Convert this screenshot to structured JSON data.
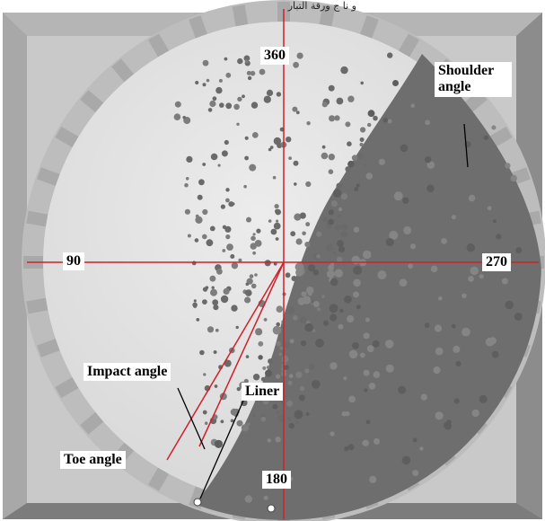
{
  "header_fragment": "و نا ج ورقة التبار",
  "angle_labels": {
    "top": "360",
    "left": "90",
    "right": "270",
    "bottom": "180"
  },
  "annotations": {
    "shoulder_angle": "Shoulder angle",
    "impact_angle": "Impact angle",
    "liner": "Liner",
    "toe_angle": "Toe angle"
  },
  "colors": {
    "background": "#ffffff",
    "frame": "#8a8a8a",
    "drum_interior": "#e6e6e6",
    "liner_ring": "#c4c4c4",
    "charge": "#6f6f6f",
    "particle": "#5a5a5a",
    "axis_lines": "#d0212a",
    "annotation_leader": "#000000"
  }
}
